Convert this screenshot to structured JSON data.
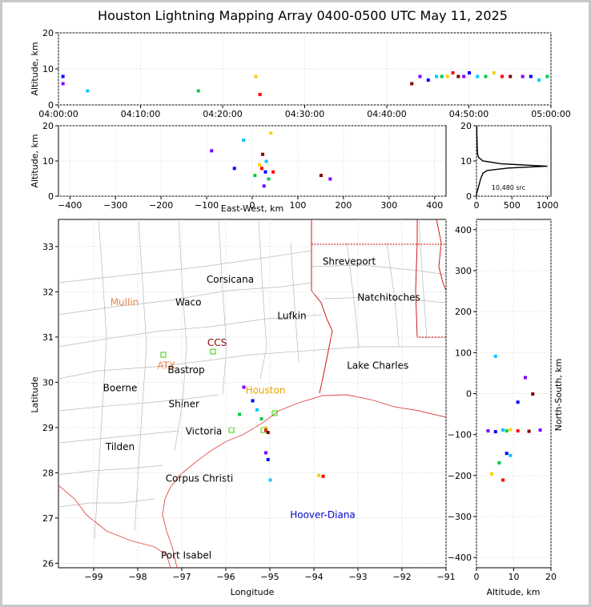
{
  "chart_data": [
    {
      "id": "time_altitude",
      "type": "scatter",
      "title": "Houston Lightning Mapping Array 0400-0500 UTC May 11, 2025",
      "xlabel": "",
      "ylabel": "Altitude, km",
      "xlim": [
        "04:00:00",
        "05:00:00"
      ],
      "ylim": [
        0,
        20
      ],
      "xticks": [
        "04:00:00",
        "04:10:00",
        "04:20:00",
        "04:30:00",
        "04:40:00",
        "04:50:00",
        "05:00:00"
      ],
      "yticks": [
        "0",
        "10",
        "20"
      ],
      "points": [
        {
          "x": "04:00:30",
          "y": 6
        },
        {
          "x": "04:00:30",
          "y": 8
        },
        {
          "x": "04:03:30",
          "y": 4
        },
        {
          "x": "04:17:00",
          "y": 4
        },
        {
          "x": "04:24:00",
          "y": 8
        },
        {
          "x": "04:24:30",
          "y": 3
        },
        {
          "x": "04:43:00",
          "y": 6
        },
        {
          "x": "04:44:00",
          "y": 8
        },
        {
          "x": "04:45:00",
          "y": 7
        },
        {
          "x": "04:46:00",
          "y": 8
        },
        {
          "x": "04:46:40",
          "y": 8
        },
        {
          "x": "04:47:20",
          "y": 8
        },
        {
          "x": "04:48:00",
          "y": 9
        },
        {
          "x": "04:48:40",
          "y": 8
        },
        {
          "x": "04:49:20",
          "y": 8
        },
        {
          "x": "04:50:00",
          "y": 9
        },
        {
          "x": "04:51:00",
          "y": 8
        },
        {
          "x": "04:52:00",
          "y": 8
        },
        {
          "x": "04:53:00",
          "y": 9
        },
        {
          "x": "04:54:00",
          "y": 8
        },
        {
          "x": "04:55:00",
          "y": 8
        },
        {
          "x": "04:56:30",
          "y": 8
        },
        {
          "x": "04:57:30",
          "y": 8
        },
        {
          "x": "04:58:30",
          "y": 7
        },
        {
          "x": "04:59:30",
          "y": 8
        }
      ]
    },
    {
      "id": "ew_altitude",
      "type": "scatter",
      "xlabel": "East-West, km",
      "ylabel": "Altitude, km",
      "xlim": [
        -425,
        425
      ],
      "ylim": [
        0,
        20
      ],
      "xticks": [
        "−400",
        "−300",
        "−200",
        "−100",
        "0",
        "100",
        "200",
        "300",
        "400"
      ],
      "yticks": [
        "0",
        "10",
        "20"
      ],
      "points": [
        {
          "x": -90,
          "y": 13
        },
        {
          "x": -40,
          "y": 8
        },
        {
          "x": -20,
          "y": 16
        },
        {
          "x": 5,
          "y": 6
        },
        {
          "x": 15,
          "y": 9
        },
        {
          "x": 20,
          "y": 8
        },
        {
          "x": 22,
          "y": 12
        },
        {
          "x": 25,
          "y": 3
        },
        {
          "x": 28,
          "y": 7
        },
        {
          "x": 30,
          "y": 10
        },
        {
          "x": 35,
          "y": 5
        },
        {
          "x": 40,
          "y": 18
        },
        {
          "x": 45,
          "y": 7
        },
        {
          "x": 150,
          "y": 6
        },
        {
          "x": 170,
          "y": 5
        }
      ]
    },
    {
      "id": "altitude_histogram",
      "type": "line",
      "annotation": "10,480 src",
      "xlim": [
        0,
        1050
      ],
      "ylim": [
        0,
        20
      ],
      "xticks": [
        "0",
        "500",
        "1000"
      ],
      "yticks": [
        "0",
        "10",
        "20"
      ],
      "points": [
        {
          "x": 5,
          "y": 20
        },
        {
          "x": 5,
          "y": 18
        },
        {
          "x": 8,
          "y": 16
        },
        {
          "x": 10,
          "y": 14
        },
        {
          "x": 15,
          "y": 12
        },
        {
          "x": 30,
          "y": 11
        },
        {
          "x": 90,
          "y": 10
        },
        {
          "x": 350,
          "y": 9.2
        },
        {
          "x": 1000,
          "y": 8.5
        },
        {
          "x": 450,
          "y": 8
        },
        {
          "x": 150,
          "y": 7.3
        },
        {
          "x": 90,
          "y": 6.5
        },
        {
          "x": 60,
          "y": 5
        },
        {
          "x": 40,
          "y": 3.5
        },
        {
          "x": 20,
          "y": 2
        },
        {
          "x": 5,
          "y": 1
        },
        {
          "x": 0,
          "y": 0
        }
      ]
    },
    {
      "id": "plan_view_map",
      "type": "scatter",
      "xlabel": "Longitude",
      "ylabel": "Latitude",
      "xlim": [
        -99.8,
        -91.0
      ],
      "ylim": [
        25.9,
        33.6
      ],
      "xticks": [
        "−99",
        "−98",
        "−97",
        "−96",
        "−95",
        "−94",
        "−93",
        "−92",
        "−91"
      ],
      "yticks": [
        "26",
        "27",
        "28",
        "29",
        "30",
        "31",
        "32",
        "33"
      ],
      "points": [
        {
          "x": -95.6,
          "y": 29.9
        },
        {
          "x": -95.4,
          "y": 29.6
        },
        {
          "x": -95.3,
          "y": 29.4
        },
        {
          "x": -95.2,
          "y": 29.2
        },
        {
          "x": -95.1,
          "y": 29.0
        },
        {
          "x": -95.1,
          "y": 28.95
        },
        {
          "x": -95.05,
          "y": 28.9
        },
        {
          "x": -95.1,
          "y": 28.45
        },
        {
          "x": -95.05,
          "y": 28.3
        },
        {
          "x": -95.0,
          "y": 27.85
        },
        {
          "x": -95.7,
          "y": 29.3
        },
        {
          "x": -93.9,
          "y": 27.95
        },
        {
          "x": -93.8,
          "y": 27.93
        }
      ]
    },
    {
      "id": "altitude_ns",
      "type": "scatter",
      "xlabel": "Altitude, km",
      "ylabel": "North-South, km",
      "xlim": [
        0,
        20
      ],
      "ylim": [
        -425,
        425
      ],
      "xticks": [
        "0",
        "10",
        "20"
      ],
      "yticks": [
        "−400",
        "−300",
        "−200",
        "−100",
        "0",
        "100",
        "200",
        "300",
        "400"
      ],
      "points": [
        {
          "x": 3,
          "y": -90
        },
        {
          "x": 5,
          "y": -92
        },
        {
          "x": 7,
          "y": -88
        },
        {
          "x": 8,
          "y": -90
        },
        {
          "x": 9,
          "y": -87
        },
        {
          "x": 11,
          "y": -90
        },
        {
          "x": 14,
          "y": -91
        },
        {
          "x": 17,
          "y": -88
        },
        {
          "x": 8,
          "y": -145
        },
        {
          "x": 9,
          "y": -150
        },
        {
          "x": 6,
          "y": -168
        },
        {
          "x": 4,
          "y": -195
        },
        {
          "x": 7,
          "y": -210
        },
        {
          "x": 15,
          "y": 0
        },
        {
          "x": 13,
          "y": 40
        },
        {
          "x": 11,
          "y": -20
        },
        {
          "x": 5,
          "y": 92
        }
      ]
    }
  ],
  "map_labels": [
    {
      "text": "Shreveport",
      "color": "#000000",
      "lon": -93.2,
      "lat": 32.6
    },
    {
      "text": "Corsicana",
      "color": "#000000",
      "lon": -95.9,
      "lat": 32.2
    },
    {
      "text": "Mullin",
      "color": "#e8834a",
      "lon": -98.3,
      "lat": 31.7
    },
    {
      "text": "Waco",
      "color": "#000000",
      "lon": -96.85,
      "lat": 31.7
    },
    {
      "text": "Natchitoches",
      "color": "#000000",
      "lon": -92.3,
      "lat": 31.8
    },
    {
      "text": "Lufkin",
      "color": "#000000",
      "lon": -94.5,
      "lat": 31.4
    },
    {
      "text": "CCS",
      "color": "#8b0000",
      "lon": -96.2,
      "lat": 30.8
    },
    {
      "text": "ATX",
      "color": "#e8834a",
      "lon": -97.35,
      "lat": 30.3
    },
    {
      "text": "Bastrop",
      "color": "#000000",
      "lon": -96.9,
      "lat": 30.2
    },
    {
      "text": "Lake Charles",
      "color": "#000000",
      "lon": -92.55,
      "lat": 30.3
    },
    {
      "text": "Houston",
      "color": "#e8a200",
      "lon": -95.1,
      "lat": 29.75
    },
    {
      "text": "Boerne",
      "color": "#000000",
      "lon": -98.4,
      "lat": 29.8
    },
    {
      "text": "Shiner",
      "color": "#000000",
      "lon": -96.95,
      "lat": 29.45
    },
    {
      "text": "Victoria",
      "color": "#000000",
      "lon": -96.5,
      "lat": 28.85
    },
    {
      "text": "Tilden",
      "color": "#000000",
      "lon": -98.4,
      "lat": 28.5
    },
    {
      "text": "Corpus Christi",
      "color": "#000000",
      "lon": -96.6,
      "lat": 27.8
    },
    {
      "text": "Hoover-Diana",
      "color": "#0000cc",
      "lon": -93.8,
      "lat": 27.0
    },
    {
      "text": "Port Isabel",
      "color": "#000000",
      "lon": -96.9,
      "lat": 26.1
    }
  ],
  "colors": {
    "state_borders": "#cc0000",
    "coastline": "#e24a4a",
    "county_borders": "#b8b8b8",
    "station_marker": "#33cc00",
    "density_scale": [
      "#8000ff",
      "#0000ff",
      "#00c8ff",
      "#00cc44",
      "#ffd000",
      "#ff0000",
      "#800000"
    ]
  }
}
